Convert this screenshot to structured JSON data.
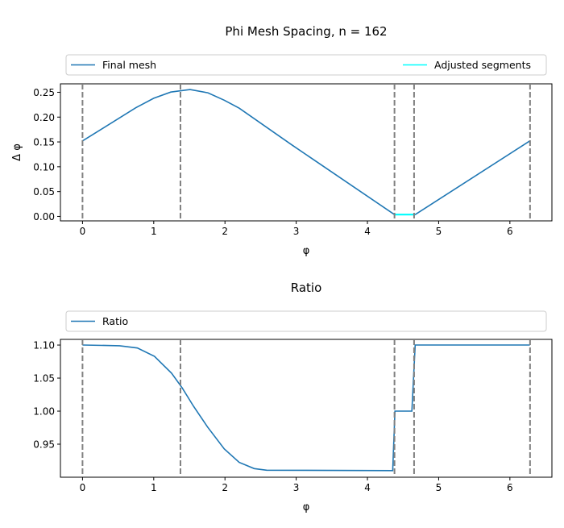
{
  "chart_data": [
    {
      "type": "line",
      "title": "Phi Mesh Spacing, n = 162",
      "xlabel": "φ",
      "ylabel": "Δ φ",
      "xlim": [
        -0.31,
        6.59
      ],
      "ylim": [
        -0.009,
        0.267
      ],
      "xticks": [
        0,
        1,
        2,
        3,
        4,
        5,
        6
      ],
      "xtick_labels": [
        "0",
        "1",
        "2",
        "3",
        "4",
        "5",
        "6"
      ],
      "yticks": [
        0.0,
        0.05,
        0.1,
        0.15,
        0.2,
        0.25
      ],
      "ytick_labels": [
        "0.00",
        "0.05",
        "0.10",
        "0.15",
        "0.20",
        "0.25"
      ],
      "legend": {
        "placement": "above",
        "entries": [
          "Final mesh",
          "Adjusted segments"
        ]
      },
      "series": [
        {
          "name": "Final mesh",
          "color": "#1f77b4",
          "x": [
            0,
            0.75,
            1.0,
            1.24,
            1.51,
            1.76,
            1.99,
            2.2,
            2.94,
            4.38,
            4.67,
            6.28
          ],
          "y": [
            0.152,
            0.219,
            0.238,
            0.2505,
            0.2554,
            0.249,
            0.234,
            0.218,
            0.144,
            0.0037,
            0.0037,
            0.152
          ]
        },
        {
          "name": "Adjusted segments",
          "color": "#00ffff",
          "x": [
            4.38,
            4.67
          ],
          "y": [
            0.0037,
            0.0037
          ]
        }
      ],
      "vlines": [
        0,
        1.375,
        4.38,
        4.655,
        6.283
      ]
    },
    {
      "type": "line",
      "title": "Ratio",
      "xlabel": "φ",
      "ylabel": "",
      "xlim": [
        -0.31,
        6.59
      ],
      "ylim": [
        0.9,
        1.1086
      ],
      "xticks": [
        0,
        1,
        2,
        3,
        4,
        5,
        6
      ],
      "xtick_labels": [
        "0",
        "1",
        "2",
        "3",
        "4",
        "5",
        "6"
      ],
      "yticks": [
        0.95,
        1.0,
        1.05,
        1.1
      ],
      "ytick_labels": [
        "0.95",
        "1.00",
        "1.05",
        "1.10"
      ],
      "legend": {
        "placement": "above",
        "entries": [
          "Ratio"
        ]
      },
      "series": [
        {
          "name": "Ratio",
          "color": "#1f77b4",
          "x": [
            0,
            0.52,
            0.77,
            1.01,
            1.25,
            1.4,
            1.555,
            1.756,
            1.99,
            2.2,
            2.41,
            2.585,
            4.355,
            4.386,
            4.624,
            4.67,
            6.28
          ],
          "y": [
            1.1,
            1.099,
            1.0955,
            1.083,
            1.0575,
            1.035,
            1.008,
            0.976,
            0.943,
            0.9225,
            0.913,
            0.9106,
            0.91,
            1.0,
            1.0,
            1.1,
            1.1
          ]
        }
      ],
      "vlines": [
        0,
        1.375,
        4.38,
        4.655,
        6.283
      ]
    }
  ]
}
